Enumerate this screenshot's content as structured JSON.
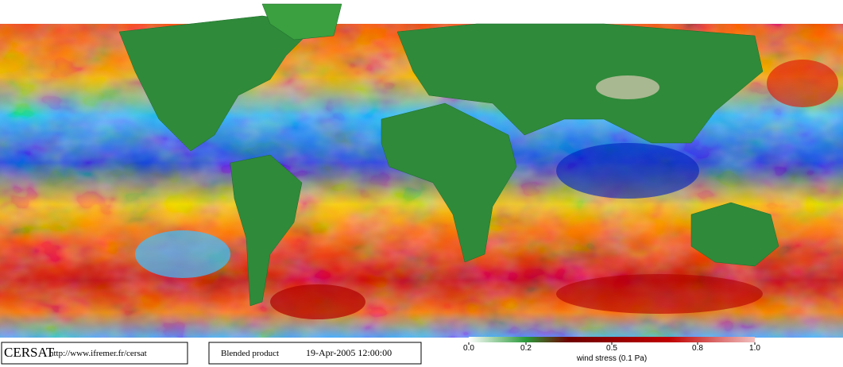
{
  "footer": {
    "logo": "CERSAT",
    "url": "http://www.ifremer.fr/cersat",
    "product": "Blended product",
    "date": "19-Apr-2005 12:00:00"
  },
  "colorbar": {
    "label": "wind stress (0.1 Pa)",
    "lim": [
      0,
      1
    ],
    "ticks": [
      {
        "value": 0,
        "label": "0.0"
      },
      0.2,
      0.5,
      0.8,
      {
        "value": 1,
        "label": "1.0"
      }
    ]
  }
}
